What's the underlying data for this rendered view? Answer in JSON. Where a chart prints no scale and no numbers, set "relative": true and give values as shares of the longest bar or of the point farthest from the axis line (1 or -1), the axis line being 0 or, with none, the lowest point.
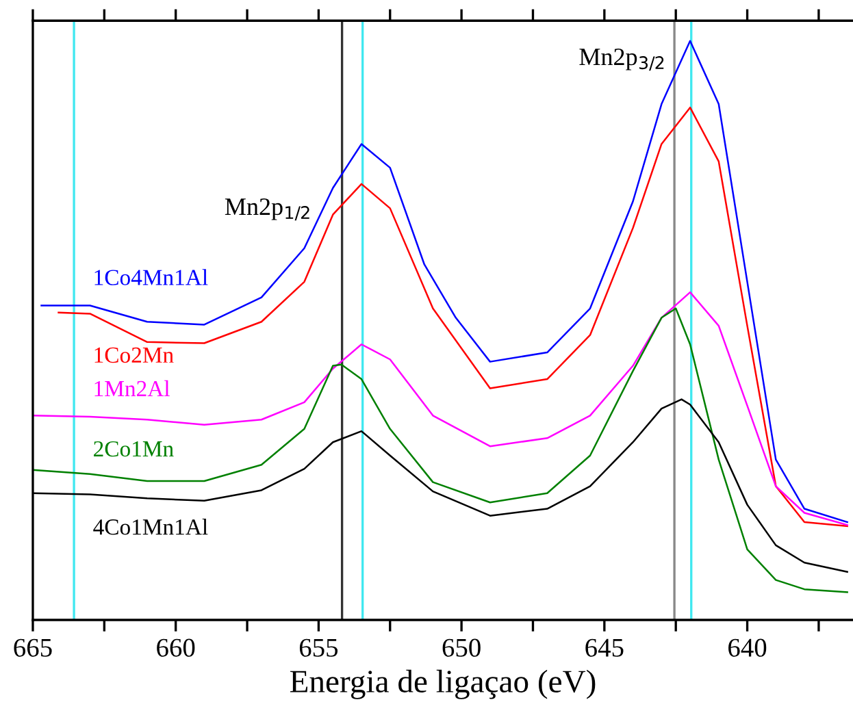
{
  "chart_data": {
    "type": "line",
    "xlabel": "Energia de ligaçao (eV)",
    "relative": true,
    "xlim": [
      665,
      636.3
    ],
    "xticks": [
      665,
      {
        "value": 662.5,
        "label": null
      },
      660,
      {
        "value": 657.5,
        "label": null
      },
      655,
      {
        "value": 652.5,
        "label": null
      },
      650,
      {
        "value": 647.5,
        "label": null
      },
      645,
      {
        "value": 642.5,
        "label": null
      },
      640,
      {
        "value": 637.5,
        "label": null
      }
    ],
    "grid": false,
    "legend": false,
    "marker": "none",
    "line_style": "solid",
    "series": [
      {
        "name": "1Co4Mn1Al",
        "color": "#0000ff",
        "x": [
          664.7,
          663,
          661,
          659,
          657,
          655.5,
          654.5,
          653.5,
          652.5,
          651.3,
          650.2,
          649,
          647,
          645.5,
          644,
          643,
          642,
          641,
          640,
          639,
          638,
          636.5
        ],
        "values": [
          0.543,
          0.543,
          0.515,
          0.51,
          0.557,
          0.642,
          0.746,
          0.822,
          0.781,
          0.614,
          0.522,
          0.446,
          0.462,
          0.538,
          0.723,
          0.891,
          1.0,
          0.891,
          0.584,
          0.277,
          0.192,
          0.169
        ]
      },
      {
        "name": "1Co2Mn",
        "color": "#ff0000",
        "x": [
          664.1,
          663,
          661,
          659,
          657,
          655.5,
          654.5,
          653.5,
          652.5,
          651,
          649,
          647,
          645.5,
          644,
          643,
          642,
          641,
          640,
          639,
          638,
          636.5
        ],
        "values": [
          0.531,
          0.529,
          0.48,
          0.478,
          0.515,
          0.584,
          0.7,
          0.753,
          0.711,
          0.538,
          0.4,
          0.416,
          0.492,
          0.677,
          0.822,
          0.885,
          0.792,
          0.508,
          0.231,
          0.169,
          0.162
        ]
      },
      {
        "name": "1Mn2Al",
        "color": "#ff00ff",
        "x": [
          665,
          663,
          661,
          659,
          657,
          655.5,
          654.5,
          653.5,
          652.5,
          651,
          649,
          647,
          645.5,
          644,
          643,
          642,
          641,
          640,
          639,
          638,
          636.5
        ],
        "values": [
          0.353,
          0.351,
          0.346,
          0.337,
          0.346,
          0.376,
          0.434,
          0.476,
          0.45,
          0.353,
          0.3,
          0.314,
          0.353,
          0.439,
          0.522,
          0.566,
          0.508,
          0.37,
          0.231,
          0.185,
          0.164
        ]
      },
      {
        "name": "2Co1Mn",
        "color": "#008000",
        "x": [
          665,
          663,
          661,
          659,
          657,
          655.5,
          654.5,
          654.2,
          653.5,
          652.5,
          651,
          649,
          647,
          645.5,
          644,
          643,
          642.5,
          642,
          641,
          640,
          639,
          638,
          636.5
        ],
        "values": [
          0.259,
          0.252,
          0.24,
          0.24,
          0.268,
          0.33,
          0.439,
          0.441,
          0.416,
          0.33,
          0.238,
          0.203,
          0.219,
          0.284,
          0.43,
          0.522,
          0.538,
          0.476,
          0.277,
          0.122,
          0.069,
          0.053,
          0.048
        ]
      },
      {
        "name": "4Co1Mn1Al",
        "color": "#000000",
        "x": [
          665,
          663,
          661,
          659,
          657,
          655.5,
          654.5,
          653.5,
          652.5,
          651,
          649,
          647,
          645.5,
          644,
          643,
          642.3,
          642,
          641,
          640,
          639,
          638,
          636.5
        ],
        "values": [
          0.219,
          0.217,
          0.21,
          0.206,
          0.224,
          0.261,
          0.307,
          0.326,
          0.284,
          0.222,
          0.18,
          0.192,
          0.231,
          0.307,
          0.365,
          0.381,
          0.372,
          0.307,
          0.199,
          0.129,
          0.099,
          0.083
        ]
      }
    ],
    "ref_lines": [
      {
        "axis": "x",
        "value": 663.56,
        "color": "#40e8f0"
      },
      {
        "axis": "x",
        "value": 654.18,
        "color": "#333333"
      },
      {
        "axis": "x",
        "value": 653.46,
        "color": "#40e8f0"
      },
      {
        "axis": "x",
        "value": 642.55,
        "color": "#888888"
      },
      {
        "axis": "x",
        "value": 641.96,
        "color": "#40e8f0"
      }
    ],
    "annotations": [
      "Mn2p$_{1/2}$",
      "Mn2p$_{3/2}$"
    ]
  }
}
